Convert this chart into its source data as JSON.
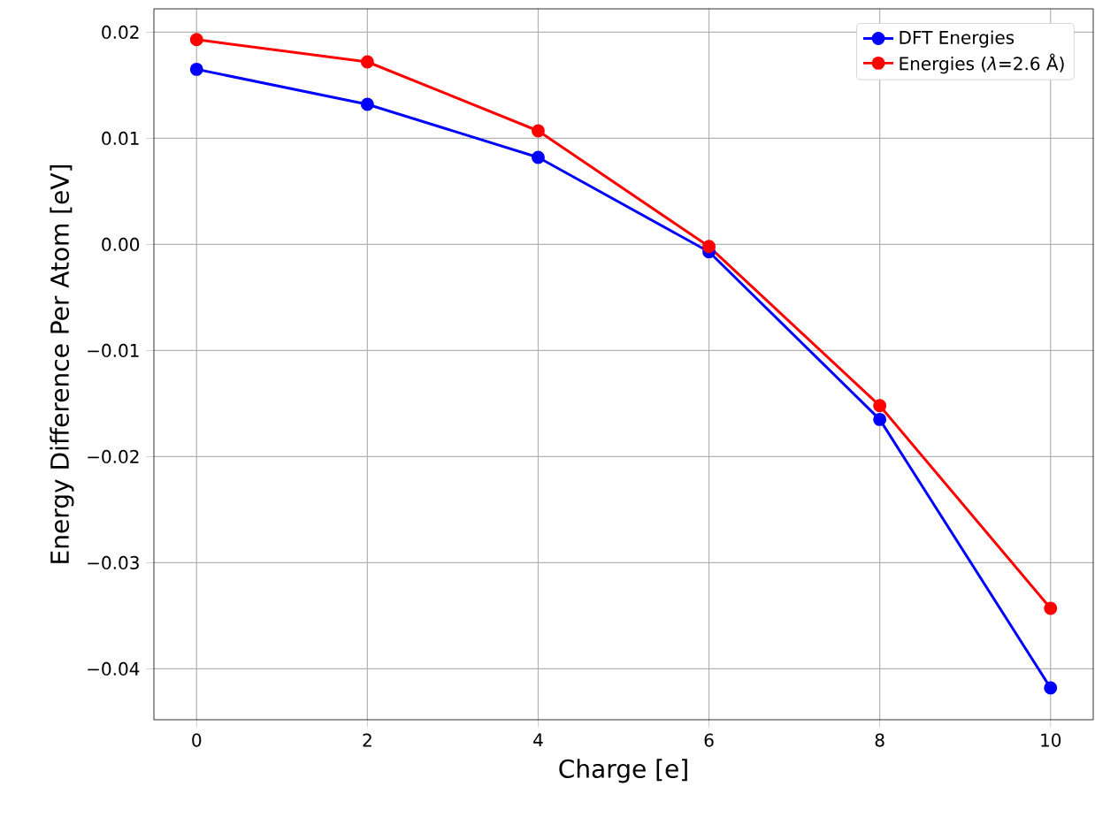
{
  "chart_data": {
    "type": "line",
    "xlabel": "Charge [e]",
    "ylabel": "Energy Difference Per Atom [eV]",
    "x": [
      0,
      2,
      4,
      6,
      8,
      10
    ],
    "series": [
      {
        "name": "DFT Energies",
        "color": "#0000ff",
        "values": [
          0.0165,
          0.0132,
          0.0082,
          -0.0007,
          -0.0165,
          -0.0418
        ]
      },
      {
        "name": "Energies (*λ*=2.6 Å)",
        "color": "#ff0000",
        "values": [
          0.0193,
          0.0172,
          0.0107,
          -0.0002,
          -0.0152,
          -0.0343
        ]
      }
    ],
    "xlim": [
      -0.5,
      10.5
    ],
    "ylim": [
      -0.0448,
      0.0222
    ],
    "xticks": [
      0,
      2,
      4,
      6,
      8,
      10
    ],
    "yticks": [
      {
        "value": -0.04,
        "label": "−0.04"
      },
      {
        "value": -0.03,
        "label": "−0.03"
      },
      {
        "value": -0.02,
        "label": "−0.02"
      },
      {
        "value": -0.01,
        "label": "−0.01"
      },
      {
        "value": 0,
        "label": "0.00"
      },
      {
        "value": 0.01,
        "label": "0.01"
      },
      {
        "value": 0.02,
        "label": "0.02"
      }
    ],
    "grid": true,
    "legend": "top right",
    "marker": "circle",
    "line_style": "solid"
  }
}
